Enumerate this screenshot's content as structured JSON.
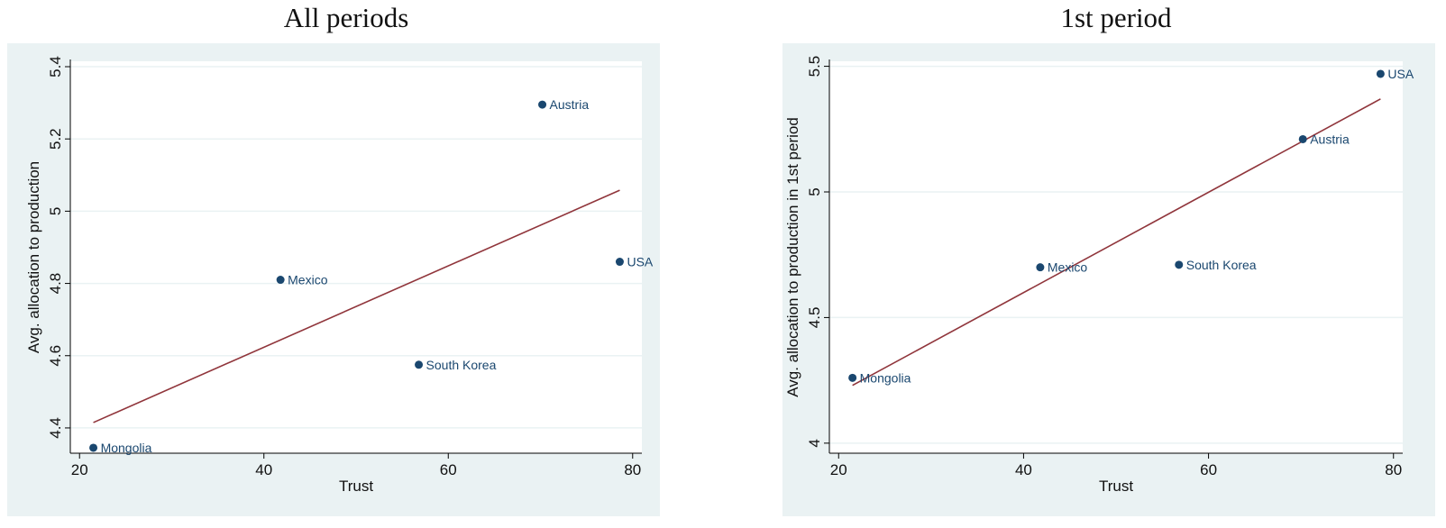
{
  "chart_data": [
    {
      "type": "scatter",
      "title": "All periods",
      "xlabel": "Trust",
      "ylabel": "Avg. allocation to production",
      "xlim": [
        19,
        81
      ],
      "ylim": [
        4.33,
        5.415
      ],
      "xticks": [
        20,
        40,
        60,
        80
      ],
      "yticks": [
        4.4,
        4.6,
        4.8,
        5,
        5.2,
        5.4
      ],
      "ytick_labels": [
        "4.4",
        "4.6",
        "4.8",
        "5",
        "5.2",
        "5.4"
      ],
      "grid": true,
      "points": [
        {
          "label": "Mongolia",
          "x": 21.5,
          "y": 4.345
        },
        {
          "label": "Mexico",
          "x": 41.8,
          "y": 4.81
        },
        {
          "label": "South Korea",
          "x": 56.8,
          "y": 4.575
        },
        {
          "label": "Austria",
          "x": 70.2,
          "y": 5.295
        },
        {
          "label": "USA",
          "x": 78.6,
          "y": 4.86
        }
      ],
      "fit_line": {
        "x": [
          21.5,
          78.6
        ],
        "y": [
          4.415,
          5.058
        ]
      }
    },
    {
      "type": "scatter",
      "title": "1st period",
      "xlabel": "Trust",
      "ylabel": "Avg. allocation to production in 1st period",
      "xlim": [
        19,
        81
      ],
      "ylim": [
        3.96,
        5.52
      ],
      "xticks": [
        20,
        40,
        60,
        80
      ],
      "yticks": [
        4,
        4.5,
        5,
        5.5
      ],
      "ytick_labels": [
        "4",
        "4.5",
        "5",
        "5.5"
      ],
      "grid": true,
      "points": [
        {
          "label": "Mongolia",
          "x": 21.5,
          "y": 4.26
        },
        {
          "label": "Mexico",
          "x": 41.8,
          "y": 4.7
        },
        {
          "label": "South Korea",
          "x": 56.8,
          "y": 4.71
        },
        {
          "label": "Austria",
          "x": 70.2,
          "y": 5.21
        },
        {
          "label": "USA",
          "x": 78.6,
          "y": 5.47
        }
      ],
      "fit_line": {
        "x": [
          21.5,
          78.6
        ],
        "y": [
          4.23,
          5.37
        ]
      }
    }
  ],
  "colors": {
    "outer_bg": "#eaf2f3",
    "plot_bg": "#ffffff",
    "grid": "#eaf2f3",
    "marker": "#1a476f",
    "fit_line": "#90353b",
    "axis": "#000000"
  }
}
